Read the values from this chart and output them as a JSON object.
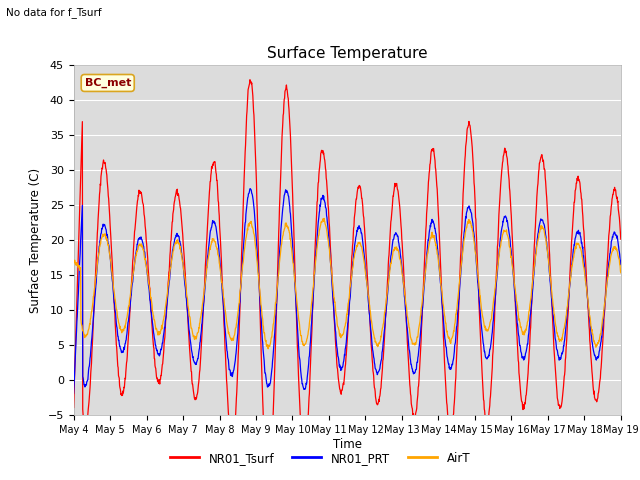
{
  "title": "Surface Temperature",
  "ylabel": "Surface Temperature (C)",
  "xlabel": "Time",
  "note": "No data for f_Tsurf",
  "annotation": "BC_met",
  "ylim": [
    -5,
    45
  ],
  "yticks": [
    -5,
    0,
    5,
    10,
    15,
    20,
    25,
    30,
    35,
    40,
    45
  ],
  "bg_color": "#dcdcdc",
  "xtick_labels": [
    "May 4",
    "May 5",
    "May 6",
    "May 7",
    "May 8",
    "May 9",
    "May 10",
    "May 11",
    "May 12",
    "May 13",
    "May 14",
    "May 15",
    "May 16",
    "May 17",
    "May 18",
    "May 19"
  ],
  "legend_labels": [
    "NR01_Tsurf",
    "NR01_PRT",
    "AirT"
  ],
  "legend_colors": [
    "red",
    "blue",
    "orange"
  ],
  "num_days": 15,
  "seed": 42
}
